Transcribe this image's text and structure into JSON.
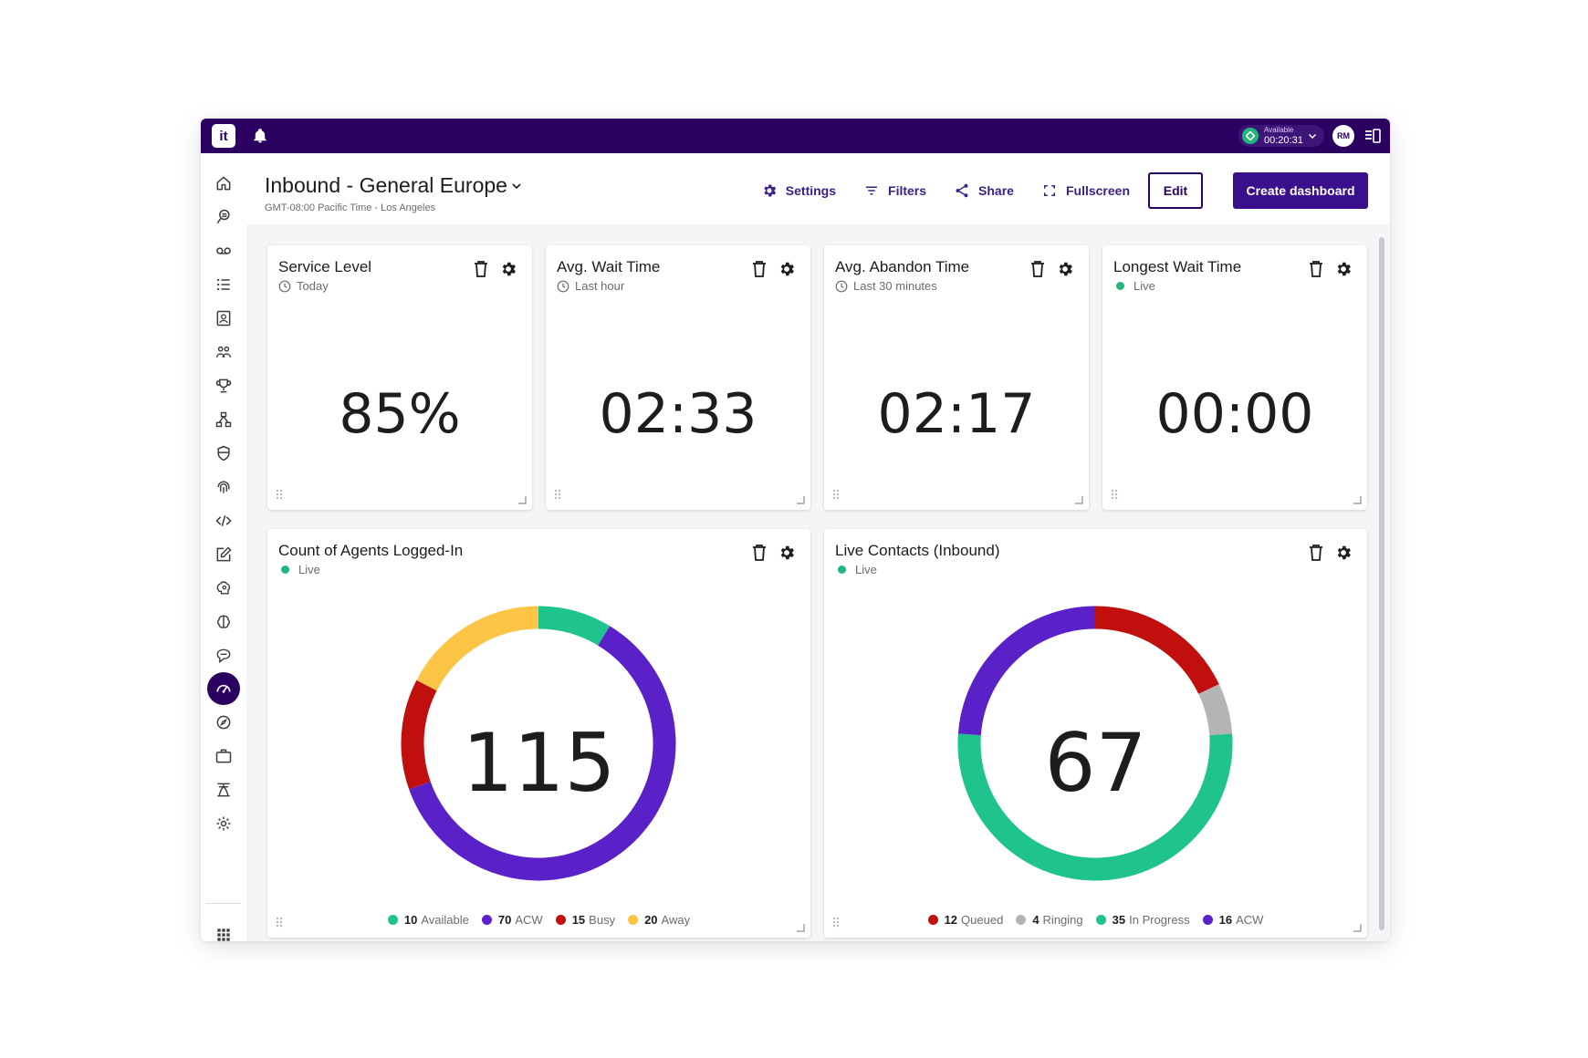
{
  "topbar": {
    "logo_text": "it",
    "status_label": "Available",
    "status_time": "00:20:31",
    "avatar_initials": "RM"
  },
  "sidebar": {
    "items": [
      "home-icon",
      "ai-chat-icon",
      "voicemail-icon",
      "queue-list-icon",
      "contact-card-icon",
      "people-icon",
      "trophy-icon",
      "flow-icon",
      "shield-icon",
      "fingerprint-icon",
      "code-icon",
      "edit-icon",
      "brain-gear-icon",
      "brain-icon",
      "chat-bubble-icon",
      "dashboard-gauge-icon",
      "compass-icon",
      "briefcase-icon",
      "agent-network-icon",
      "settings-icon"
    ],
    "active": "dashboard-gauge-icon",
    "apps_icon": "grid-apps-icon"
  },
  "header": {
    "title": "Inbound - General Europe",
    "subtitle": "GMT-08:00 Pacific Time - Los Angeles",
    "settings_label": "Settings",
    "filters_label": "Filters",
    "share_label": "Share",
    "fullscreen_label": "Fullscreen",
    "edit_label": "Edit",
    "create_label": "Create dashboard"
  },
  "kpis": [
    {
      "title": "Service Level",
      "period": "Today",
      "live": false,
      "value": "85%"
    },
    {
      "title": "Avg. Wait Time",
      "period": "Last hour",
      "live": false,
      "value": "02:33"
    },
    {
      "title": "Avg. Abandon Time",
      "period": "Last 30 minutes",
      "live": false,
      "value": "02:17"
    },
    {
      "title": "Longest Wait Time",
      "period": "Live",
      "live": true,
      "value": "00:00"
    }
  ],
  "agents": {
    "title": "Count of Agents Logged-In",
    "period": "Live",
    "total": "115",
    "segments": [
      {
        "label": "Available",
        "value": 10,
        "color": "#1fc38e"
      },
      {
        "label": "ACW",
        "value": 70,
        "color": "#5b21c9"
      },
      {
        "label": "Busy",
        "value": 15,
        "color": "#c00f0c"
      },
      {
        "label": "Away",
        "value": 20,
        "color": "#fcc546"
      }
    ]
  },
  "contacts": {
    "title": "Live Contacts (Inbound)",
    "period": "Live",
    "total": "67",
    "segments": [
      {
        "label": "Queued",
        "value": 12,
        "color": "#c00f0c"
      },
      {
        "label": "Ringing",
        "value": 4,
        "color": "#b4b4b4"
      },
      {
        "label": "In Progress",
        "value": 35,
        "color": "#1fc38e"
      },
      {
        "label": "ACW",
        "value": 16,
        "color": "#5b21c9"
      }
    ]
  },
  "colors": {
    "brand_dark": "#2a0060",
    "accent": "#3a0f8c",
    "live_green": "#1fb87a"
  }
}
